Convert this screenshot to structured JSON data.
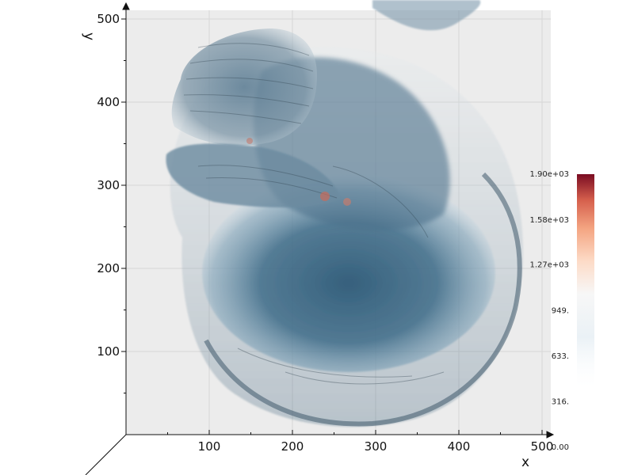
{
  "scene": {
    "description_free": true,
    "background_color": "#ffffff",
    "plot_background_color": "#ececec",
    "grid_color": "#d6d6d6",
    "volume_colormap": [
      "#053061",
      "#2166ac",
      "#4393c3",
      "#92c5de",
      "#d1e5f0",
      "#f7f7f7",
      "#fddbc7",
      "#f4a582",
      "#d6604d",
      "#b2182b",
      "#67001f"
    ]
  },
  "axes": {
    "x": {
      "label": "x",
      "ticks": [
        "100",
        "200",
        "300",
        "400",
        "500"
      ],
      "values": [
        100,
        200,
        300,
        400,
        500
      ],
      "range": [
        0,
        500
      ]
    },
    "y": {
      "label": "y",
      "ticks": [
        "100",
        "200",
        "300",
        "400",
        "500"
      ],
      "values": [
        100,
        200,
        300,
        400,
        500
      ],
      "range": [
        0,
        500
      ]
    }
  },
  "colorbar": {
    "labels": [
      "1.90e+03",
      "1.58e+03",
      "1.27e+03",
      "949.",
      "633.",
      "316.",
      "0.00"
    ],
    "values": [
      1900,
      1580,
      1270,
      949,
      633,
      316,
      0
    ],
    "range": [
      0,
      1900
    ]
  }
}
